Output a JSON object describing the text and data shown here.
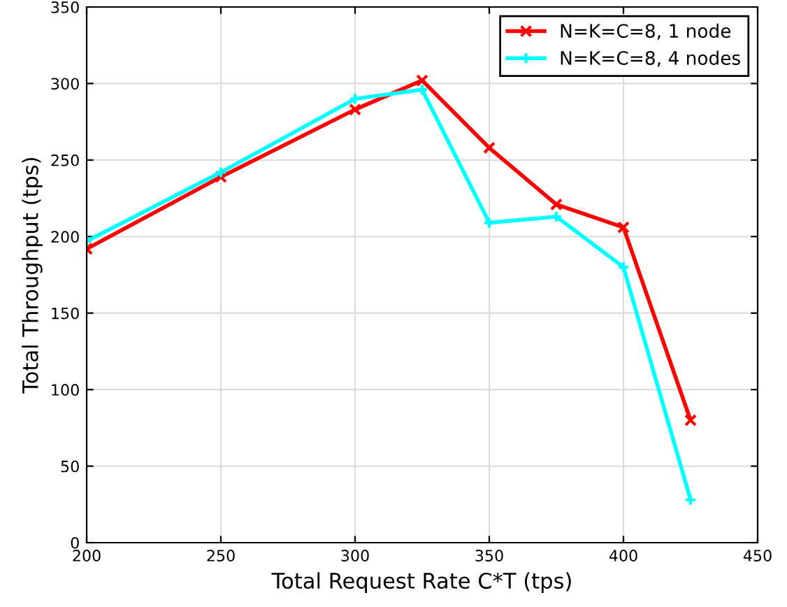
{
  "chart_data": {
    "type": "line",
    "xlabel": "Total Request Rate C*T (tps)",
    "ylabel": "Total Throughput (tps)",
    "x": [
      200,
      250,
      300,
      325,
      350,
      375,
      400,
      425
    ],
    "series": [
      {
        "name": "N=K=C=8, 1 node",
        "color": "#ff0000",
        "marker": "cross",
        "values": [
          192,
          239,
          283,
          302,
          258,
          221,
          206,
          80
        ]
      },
      {
        "name": "N=K=C=8, 4 nodes",
        "color": "#00ffff",
        "marker": "plus",
        "values": [
          197,
          242,
          290,
          296,
          209,
          213,
          180,
          28
        ]
      }
    ],
    "xlim": [
      200,
      450
    ],
    "xticks": [
      200,
      250,
      300,
      350,
      400,
      450
    ],
    "ylim": [
      0,
      350
    ],
    "yticks": [
      0,
      50,
      100,
      150,
      200,
      250,
      300,
      350
    ],
    "grid": true,
    "legend": "top right",
    "line_style": "solid"
  }
}
